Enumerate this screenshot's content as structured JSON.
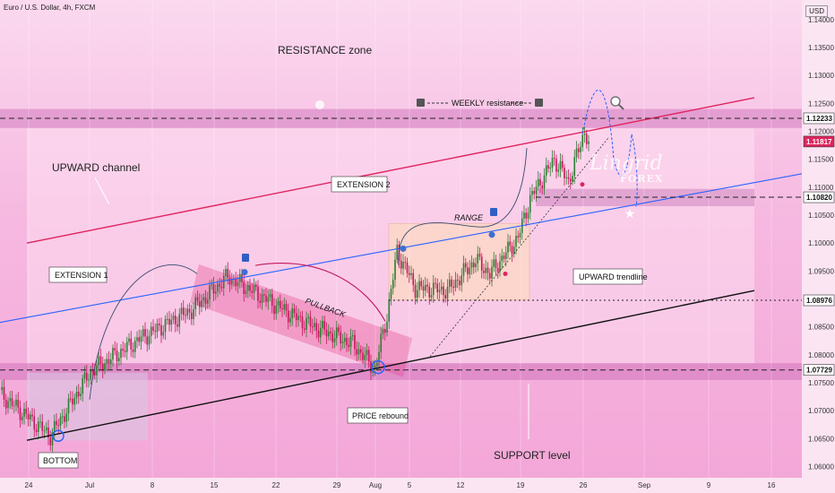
{
  "header": {
    "title": "Euro / U.S. Dollar, 4h, FXCM",
    "currency": "USD"
  },
  "logo": {
    "line1": "Lingrid",
    "line2": "FOREX"
  },
  "annotations": {
    "resistance_zone": "RESISTANCE zone",
    "upward_channel": "UPWARD channel",
    "extension1": "EXTENSION 1",
    "extension2": "EXTENSION 2",
    "pullback": "PULLBACK",
    "range": "RANGE",
    "weekly_resistance": "WEEKLY resistance",
    "upward_trendline": "UPWARD trendline",
    "price_rebound": "PRICE rebound",
    "bottom": "BOTTOM",
    "support_level": "SUPPORT level"
  },
  "colors": {
    "bull": "#2e7d32",
    "bear": "#c2185b",
    "channel_top": "#e0245e",
    "channel_bottom": "#111111",
    "trend_blue": "#2962ff",
    "zone": "#d16fb8",
    "range_box": "#fdd9c4"
  },
  "chart_data": {
    "type": "candlestick",
    "title": "Euro / U.S. Dollar, 4h, FXCM",
    "ylabel": "USD",
    "ylim": [
      1.058,
      1.1435
    ],
    "y_ticks": [
      "1.06000",
      "1.06500",
      "1.07000",
      "1.07500",
      "1.08000",
      "1.08500",
      "1.09000",
      "1.09500",
      "1.10000",
      "1.10500",
      "1.11000",
      "1.11500",
      "1.12000",
      "1.12500",
      "1.13000",
      "1.13500",
      "1.14000"
    ],
    "x_ticks": [
      "24",
      "Jul",
      "8",
      "15",
      "22",
      "29",
      "Aug",
      "5",
      "12",
      "19",
      "26",
      "Sep",
      "9",
      "16"
    ],
    "price_labels": [
      {
        "value": 1.12233,
        "text": "1.12233",
        "style": "line"
      },
      {
        "value": 1.11817,
        "text": "1.11817",
        "style": "last"
      },
      {
        "value": 1.1082,
        "text": "1.10820",
        "style": "line"
      },
      {
        "value": 1.08976,
        "text": "1.08976",
        "style": "line"
      },
      {
        "value": 1.07729,
        "text": "1.07729",
        "style": "line"
      }
    ],
    "anchors": [
      {
        "i": 0,
        "p": 1.073
      },
      {
        "i": 10,
        "p": 1.07
      },
      {
        "i": 25,
        "p": 1.0655
      },
      {
        "i": 45,
        "p": 1.077
      },
      {
        "i": 70,
        "p": 1.083
      },
      {
        "i": 95,
        "p": 1.088
      },
      {
        "i": 113,
        "p": 1.094
      },
      {
        "i": 125,
        "p": 1.0915
      },
      {
        "i": 150,
        "p": 1.086
      },
      {
        "i": 175,
        "p": 1.082
      },
      {
        "i": 186,
        "p": 1.0775
      },
      {
        "i": 192,
        "p": 1.087
      },
      {
        "i": 197,
        "p": 1.0985
      },
      {
        "i": 206,
        "p": 1.092
      },
      {
        "i": 222,
        "p": 1.0915
      },
      {
        "i": 236,
        "p": 1.097
      },
      {
        "i": 243,
        "p": 1.0945
      },
      {
        "i": 257,
        "p": 1.101
      },
      {
        "i": 263,
        "p": 1.108
      },
      {
        "i": 275,
        "p": 1.115
      },
      {
        "i": 282,
        "p": 1.111
      },
      {
        "i": 290,
        "p": 1.12
      },
      {
        "i": 292,
        "p": 1.1182
      }
    ],
    "zones": [
      {
        "name": "resistance",
        "from": 1.1206,
        "to": 1.124
      },
      {
        "name": "support",
        "from": 1.0755,
        "to": 1.0785
      },
      {
        "name": "weekly",
        "from": 1.1066,
        "to": 1.1097
      }
    ]
  }
}
